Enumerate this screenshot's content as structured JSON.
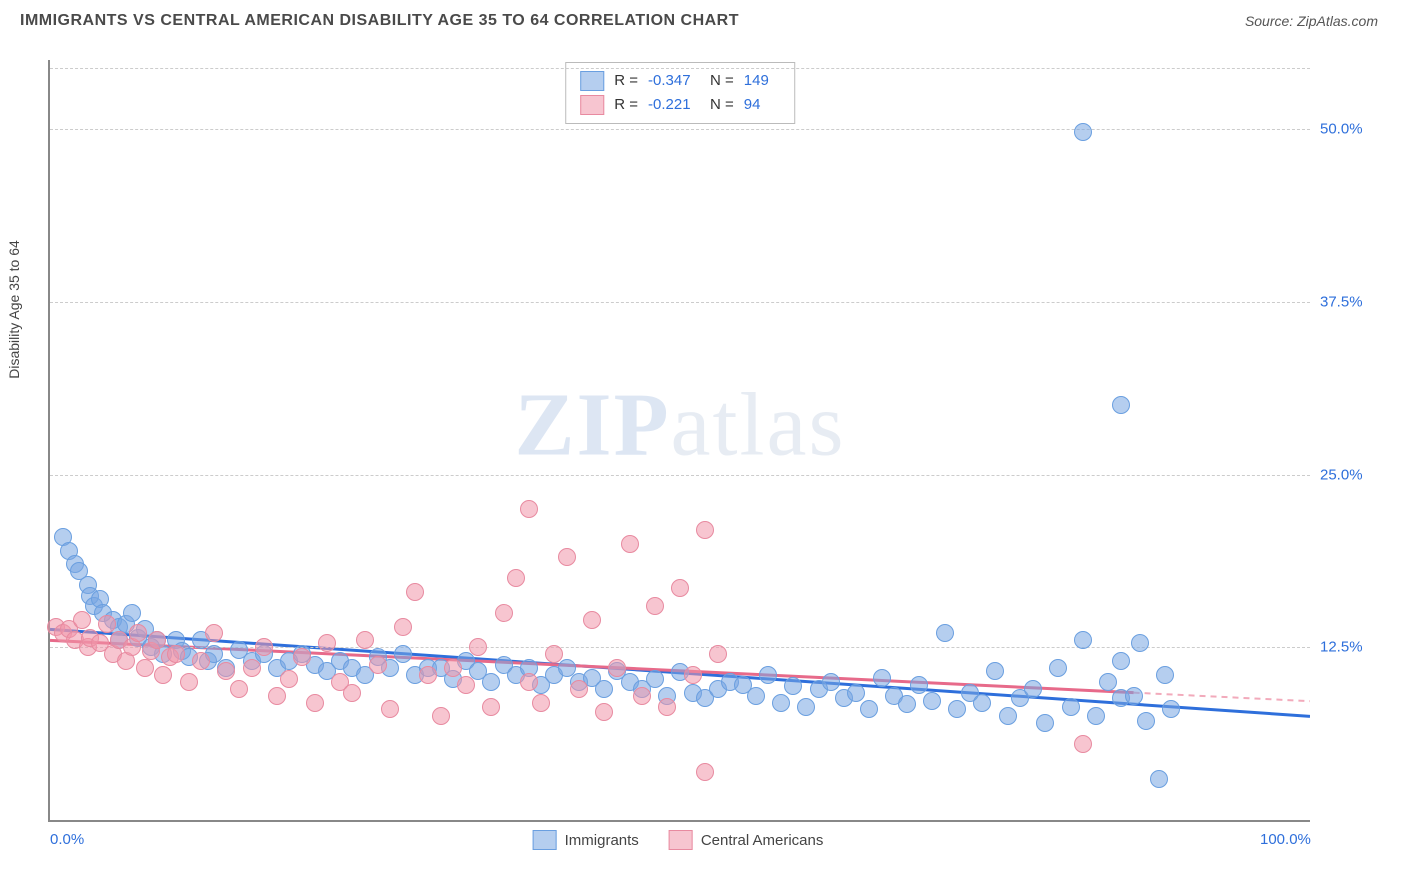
{
  "header": {
    "title": "IMMIGRANTS VS CENTRAL AMERICAN DISABILITY AGE 35 TO 64 CORRELATION CHART",
    "source": "Source: ZipAtlas.com"
  },
  "watermark": {
    "prefix": "ZIP",
    "suffix": "atlas"
  },
  "chart": {
    "type": "scatter",
    "y_axis_title": "Disability Age 35 to 64",
    "xlim": [
      0,
      100
    ],
    "ylim": [
      0,
      55
    ],
    "x_ticks": [
      {
        "value": 0,
        "label": "0.0%"
      },
      {
        "value": 100,
        "label": "100.0%"
      }
    ],
    "y_ticks": [
      {
        "value": 12.5,
        "label": "12.5%"
      },
      {
        "value": 25.0,
        "label": "25.0%"
      },
      {
        "value": 37.5,
        "label": "37.5%"
      },
      {
        "value": 50.0,
        "label": "50.0%"
      }
    ],
    "background_color": "#ffffff",
    "grid_color": "#cccccc",
    "axis_color": "#888888",
    "tick_label_color": "#2e6fdb",
    "series": [
      {
        "name": "Immigrants",
        "marker_fill": "rgba(120,165,225,0.55)",
        "marker_stroke": "#6a9fe0",
        "marker_radius": 8,
        "trend_color": "#2e6fdb",
        "trend_dash_color": "#7fa8e8",
        "trend": {
          "x1": 0,
          "y1": 13.8,
          "x2": 100,
          "y2": 7.5,
          "solid_until": 100
        },
        "stats": {
          "R": "-0.347",
          "N": "149"
        },
        "points": [
          [
            1,
            20.5
          ],
          [
            1.5,
            19.5
          ],
          [
            2,
            18.5
          ],
          [
            2.3,
            18
          ],
          [
            3,
            17
          ],
          [
            3.2,
            16.2
          ],
          [
            3.5,
            15.5
          ],
          [
            4,
            16
          ],
          [
            4.2,
            15
          ],
          [
            5,
            14.5
          ],
          [
            5.5,
            14
          ],
          [
            5.5,
            13
          ],
          [
            6,
            14.2
          ],
          [
            6.5,
            15
          ],
          [
            7,
            13.2
          ],
          [
            7.5,
            13.8
          ],
          [
            8,
            12.5
          ],
          [
            8.5,
            13
          ],
          [
            9,
            12
          ],
          [
            10,
            13
          ],
          [
            10.5,
            12.2
          ],
          [
            11,
            11.8
          ],
          [
            12,
            13
          ],
          [
            12.5,
            11.5
          ],
          [
            13,
            12
          ],
          [
            14,
            11
          ],
          [
            15,
            12.3
          ],
          [
            16,
            11.5
          ],
          [
            17,
            12
          ],
          [
            18,
            11
          ],
          [
            19,
            11.5
          ],
          [
            20,
            12
          ],
          [
            21,
            11.2
          ],
          [
            22,
            10.8
          ],
          [
            23,
            11.5
          ],
          [
            24,
            11
          ],
          [
            25,
            10.5
          ],
          [
            26,
            11.8
          ],
          [
            27,
            11
          ],
          [
            28,
            12
          ],
          [
            29,
            10.5
          ],
          [
            30,
            11
          ],
          [
            31,
            11
          ],
          [
            32,
            10.2
          ],
          [
            33,
            11.5
          ],
          [
            34,
            10.8
          ],
          [
            35,
            10
          ],
          [
            36,
            11.2
          ],
          [
            37,
            10.5
          ],
          [
            38,
            11
          ],
          [
            39,
            9.8
          ],
          [
            40,
            10.5
          ],
          [
            41,
            11
          ],
          [
            42,
            10
          ],
          [
            43,
            10.3
          ],
          [
            44,
            9.5
          ],
          [
            45,
            10.8
          ],
          [
            46,
            10
          ],
          [
            47,
            9.5
          ],
          [
            48,
            10.2
          ],
          [
            49,
            9
          ],
          [
            50,
            10.7
          ],
          [
            51,
            9.2
          ],
          [
            52,
            8.8
          ],
          [
            53,
            9.5
          ],
          [
            54,
            10
          ],
          [
            55,
            9.8
          ],
          [
            56,
            9
          ],
          [
            57,
            10.5
          ],
          [
            58,
            8.5
          ],
          [
            59,
            9.7
          ],
          [
            60,
            8.2
          ],
          [
            61,
            9.5
          ],
          [
            62,
            10
          ],
          [
            63,
            8.8
          ],
          [
            64,
            9.2
          ],
          [
            65,
            8
          ],
          [
            66,
            10.3
          ],
          [
            67,
            9
          ],
          [
            68,
            8.4
          ],
          [
            69,
            9.8
          ],
          [
            70,
            8.6
          ],
          [
            71,
            13.5
          ],
          [
            72,
            8
          ],
          [
            73,
            9.2
          ],
          [
            74,
            8.5
          ],
          [
            75,
            10.8
          ],
          [
            76,
            7.5
          ],
          [
            77,
            8.8
          ],
          [
            78,
            9.5
          ],
          [
            79,
            7
          ],
          [
            80,
            11
          ],
          [
            81,
            8.2
          ],
          [
            82,
            13
          ],
          [
            83,
            7.5
          ],
          [
            84,
            10
          ],
          [
            85,
            8.8
          ],
          [
            85,
            11.5
          ],
          [
            85,
            30
          ],
          [
            86,
            9
          ],
          [
            86.5,
            12.8
          ],
          [
            87,
            7.2
          ],
          [
            88,
            3
          ],
          [
            88.5,
            10.5
          ],
          [
            89,
            8
          ],
          [
            82,
            49.8
          ]
        ]
      },
      {
        "name": "Central Americans",
        "marker_fill": "rgba(240,150,170,0.55)",
        "marker_stroke": "#e88aa0",
        "marker_radius": 8,
        "trend_color": "#e76a8a",
        "trend_dash_color": "#f2aabb",
        "trend": {
          "x1": 0,
          "y1": 13.0,
          "x2": 100,
          "y2": 8.6,
          "solid_until": 86
        },
        "stats": {
          "R": "-0.221",
          "N": "94"
        },
        "points": [
          [
            0.5,
            14
          ],
          [
            1,
            13.5
          ],
          [
            1.5,
            13.8
          ],
          [
            2,
            13
          ],
          [
            2.5,
            14.5
          ],
          [
            3,
            12.5
          ],
          [
            3.2,
            13.2
          ],
          [
            4,
            12.8
          ],
          [
            4.5,
            14.2
          ],
          [
            5,
            12
          ],
          [
            5.5,
            13
          ],
          [
            6,
            11.5
          ],
          [
            6.5,
            12.5
          ],
          [
            7,
            13.5
          ],
          [
            7.5,
            11
          ],
          [
            8,
            12.2
          ],
          [
            8.5,
            13
          ],
          [
            9,
            10.5
          ],
          [
            9.5,
            11.8
          ],
          [
            10,
            12
          ],
          [
            11,
            10
          ],
          [
            12,
            11.5
          ],
          [
            13,
            13.5
          ],
          [
            14,
            10.8
          ],
          [
            15,
            9.5
          ],
          [
            16,
            11
          ],
          [
            17,
            12.5
          ],
          [
            18,
            9
          ],
          [
            19,
            10.2
          ],
          [
            20,
            11.8
          ],
          [
            21,
            8.5
          ],
          [
            22,
            12.8
          ],
          [
            23,
            10
          ],
          [
            24,
            9.2
          ],
          [
            25,
            13
          ],
          [
            26,
            11.2
          ],
          [
            27,
            8
          ],
          [
            28,
            14
          ],
          [
            29,
            16.5
          ],
          [
            30,
            10.5
          ],
          [
            31,
            7.5
          ],
          [
            32,
            11
          ],
          [
            33,
            9.8
          ],
          [
            34,
            12.5
          ],
          [
            35,
            8.2
          ],
          [
            36,
            15
          ],
          [
            37,
            17.5
          ],
          [
            38,
            10
          ],
          [
            38,
            22.5
          ],
          [
            39,
            8.5
          ],
          [
            40,
            12
          ],
          [
            41,
            19
          ],
          [
            42,
            9.5
          ],
          [
            43,
            14.5
          ],
          [
            44,
            7.8
          ],
          [
            45,
            11
          ],
          [
            46,
            20
          ],
          [
            47,
            9
          ],
          [
            48,
            15.5
          ],
          [
            49,
            8.2
          ],
          [
            50,
            16.8
          ],
          [
            51,
            10.5
          ],
          [
            52,
            3.5
          ],
          [
            53,
            12
          ],
          [
            52,
            21
          ],
          [
            82,
            5.5
          ]
        ]
      }
    ],
    "stats_box": {
      "R_label": "R =",
      "N_label": "N ="
    },
    "bottom_legend": [
      {
        "label": "Immigrants",
        "fill": "rgba(120,165,225,0.55)",
        "stroke": "#6a9fe0"
      },
      {
        "label": "Central Americans",
        "fill": "rgba(240,150,170,0.55)",
        "stroke": "#e88aa0"
      }
    ]
  }
}
